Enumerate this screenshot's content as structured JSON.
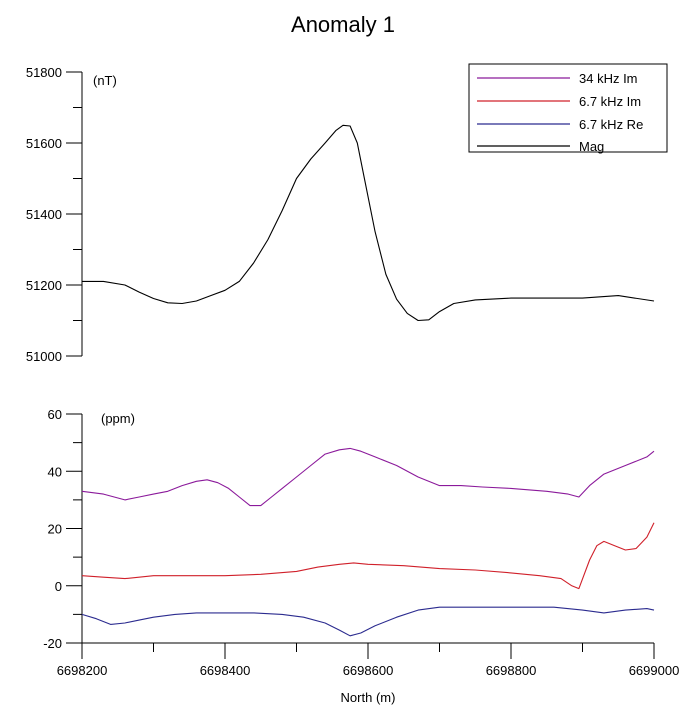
{
  "chart_data": {
    "type": "line",
    "title": "Anomaly 1",
    "xlabel": "North (m)",
    "xlim": [
      6698200,
      6699000
    ],
    "x_ticks": [
      6698200,
      6698400,
      6698600,
      6698800,
      6699000
    ],
    "x_tick_labels": [
      "6698200",
      "6698400",
      "6698600",
      "6698800",
      "6699000"
    ],
    "legend_position": "top-right",
    "legend": [
      "34 kHz Im",
      "6.7 kHz Im",
      "6.7 kHz Re",
      "Mag"
    ],
    "colors": {
      "34 kHz Im": "#8b1a9b",
      "6.7 kHz Im": "#d0202a",
      "6.7 kHz Re": "#2b2b8f",
      "Mag": "#000000"
    },
    "panels": [
      {
        "id": "mag",
        "unit_label": "(nT)",
        "ylim": [
          51000,
          51800
        ],
        "y_ticks": [
          51000,
          51200,
          51400,
          51600,
          51800
        ],
        "y_tick_labels": [
          "51000",
          "51200",
          "51400",
          "51600",
          "51800"
        ],
        "series": [
          {
            "name": "Mag",
            "x": [
              6698200,
              6698230,
              6698260,
              6698280,
              6698300,
              6698320,
              6698340,
              6698360,
              6698380,
              6698400,
              6698420,
              6698440,
              6698460,
              6698480,
              6698500,
              6698520,
              6698540,
              6698555,
              6698565,
              6698575,
              6698585,
              6698595,
              6698610,
              6698625,
              6698640,
              6698655,
              6698670,
              6698685,
              6698700,
              6698720,
              6698750,
              6698800,
              6698850,
              6698900,
              6698950,
              6699000
            ],
            "values": [
              51210,
              51210,
              51200,
              51180,
              51162,
              51150,
              51148,
              51155,
              51170,
              51185,
              51210,
              51262,
              51328,
              51410,
              51500,
              51555,
              51600,
              51635,
              51650,
              51648,
              51600,
              51500,
              51350,
              51230,
              51160,
              51120,
              51100,
              51102,
              51125,
              51148,
              51158,
              51163,
              51163,
              51163,
              51170,
              51155
            ]
          }
        ]
      },
      {
        "id": "em",
        "unit_label": "(ppm)",
        "ylim": [
          -20,
          60
        ],
        "y_ticks": [
          -20,
          0,
          20,
          40,
          60
        ],
        "y_tick_labels": [
          "-20",
          "0",
          "20",
          "40",
          "60"
        ],
        "series": [
          {
            "name": "34 kHz Im",
            "x": [
              6698200,
              6698230,
              6698260,
              6698280,
              6698300,
              6698320,
              6698340,
              6698360,
              6698375,
              6698390,
              6698405,
              6698420,
              6698435,
              6698450,
              6698465,
              6698480,
              6698500,
              6698520,
              6698540,
              6698560,
              6698575,
              6698590,
              6698610,
              6698640,
              6698670,
              6698700,
              6698730,
              6698760,
              6698800,
              6698850,
              6698880,
              6698895,
              6698910,
              6698930,
              6698960,
              6698990,
              6699000
            ],
            "values": [
              33,
              32,
              30,
              31,
              32,
              33,
              35,
              36.5,
              37,
              36,
              34,
              31,
              28,
              28,
              31,
              34,
              38,
              42,
              46,
              47.5,
              48,
              47,
              45,
              42,
              38,
              35,
              35,
              34.5,
              34,
              33,
              32,
              31,
              35,
              39,
              42,
              45,
              47
            ]
          },
          {
            "name": "6.7 kHz Im",
            "x": [
              6698200,
              6698230,
              6698260,
              6698300,
              6698350,
              6698400,
              6698450,
              6698500,
              6698530,
              6698560,
              6698580,
              6698600,
              6698650,
              6698700,
              6698750,
              6698800,
              6698840,
              6698870,
              6698885,
              6698895,
              6698910,
              6698920,
              6698930,
              6698945,
              6698960,
              6698975,
              6698990,
              6699000
            ],
            "values": [
              3.5,
              3,
              2.5,
              3.5,
              3.5,
              3.5,
              4,
              5,
              6.5,
              7.5,
              8,
              7.5,
              7,
              6,
              5.5,
              4.5,
              3.5,
              2.5,
              0,
              -1,
              9,
              14,
              15.5,
              14,
              12.5,
              13,
              17,
              22
            ]
          },
          {
            "name": "6.7 kHz Re",
            "x": [
              6698200,
              6698220,
              6698240,
              6698260,
              6698280,
              6698300,
              6698330,
              6698360,
              6698400,
              6698440,
              6698480,
              6698510,
              6698540,
              6698560,
              6698575,
              6698590,
              6698610,
              6698640,
              6698670,
              6698700,
              6698740,
              6698780,
              6698820,
              6698860,
              6698900,
              6698930,
              6698960,
              6698990,
              6699000
            ],
            "values": [
              -10,
              -11.5,
              -13.5,
              -13,
              -12,
              -11,
              -10,
              -9.5,
              -9.5,
              -9.5,
              -10,
              -11,
              -13,
              -15.5,
              -17.5,
              -16.5,
              -14,
              -11,
              -8.5,
              -7.5,
              -7.5,
              -7.5,
              -7.5,
              -7.5,
              -8.5,
              -9.5,
              -8.5,
              -8,
              -8.5
            ]
          }
        ]
      }
    ]
  }
}
